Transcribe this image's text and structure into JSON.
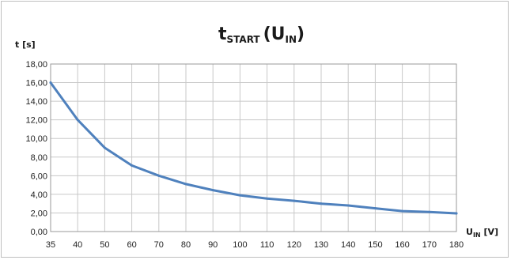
{
  "chart_data": {
    "type": "line",
    "title": {
      "main": "t",
      "main_sub": "START",
      "open": "(U",
      "open_sub": "IN",
      "close": ")"
    },
    "ylabel": "t [s]",
    "xlabel": {
      "main": "U",
      "sub": "IN",
      "unit": " [V]"
    },
    "x": [
      35,
      40,
      50,
      60,
      70,
      80,
      90,
      100,
      110,
      120,
      130,
      140,
      150,
      160,
      170,
      180
    ],
    "x_tick_labels": [
      "35",
      "40",
      "50",
      "60",
      "70",
      "80",
      "90",
      "100",
      "110",
      "120",
      "130",
      "140",
      "150",
      "160",
      "170",
      "180"
    ],
    "y_ticks": [
      0,
      2,
      4,
      6,
      8,
      10,
      12,
      14,
      16,
      18
    ],
    "y_tick_labels": [
      "0,00",
      "2,00",
      "4,00",
      "6,00",
      "8,00",
      "10,00",
      "12,00",
      "14,00",
      "16,00",
      "18,00"
    ],
    "ylim": [
      0,
      18
    ],
    "x_axis_kind": "category",
    "grid": true,
    "legend": "none",
    "series": [
      {
        "values": [
          16.0,
          12.0,
          9.0,
          7.1,
          6.0,
          5.1,
          4.45,
          3.9,
          3.55,
          3.3,
          3.0,
          2.8,
          2.5,
          2.2,
          2.1,
          1.95
        ],
        "color": "#4f81bd"
      }
    ]
  }
}
